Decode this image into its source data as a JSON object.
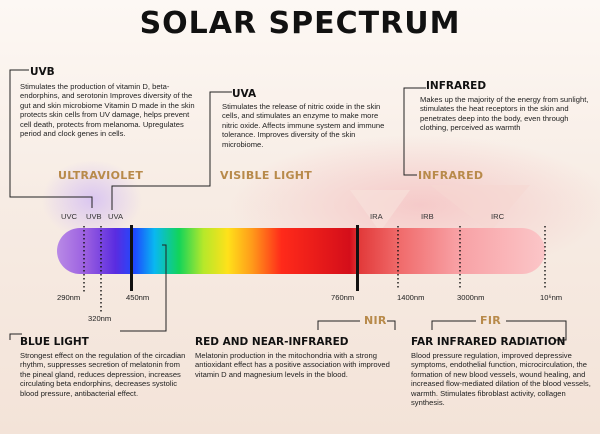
{
  "title": "SOLAR SPECTRUM",
  "uvb": {
    "heading": "UVB",
    "text": "Stimulates the production of vitamin D, beta-endorphins, and serotonin Improves diversity of the gut and skin microbiome Vitamin D made in the skin protects skin cells from UV damage, helps prevent cell death, protects from melanoma. Upregulates period and clock genes in cells."
  },
  "uva": {
    "heading": "UVA",
    "text": "Stimulates the release of nitric oxide in the skin cells, and stimulates an enzyme to make more nitric oxide. Affects immune system and immune tolerance. Improves diversity of the skin microbiome."
  },
  "infrared": {
    "heading": "INFRARED",
    "text": "Makes up the majority of the energy from sunlight, stimulates the heat receptors in the skin and penetrates deep into the body, even through clothing, perceived as warmth"
  },
  "bands": {
    "ultraviolet": "ULTRAVIOLET",
    "visible": "VISIBLE LIGHT",
    "infrared": "INFRARED"
  },
  "ticks": {
    "uvc": "UVC",
    "uvb": "UVB",
    "uva": "UVA",
    "ira": "IRA",
    "irb": "IRB",
    "irc": "IRC"
  },
  "wavelengths": {
    "w290": "290nm",
    "w320": "320nm",
    "w450": "450nm",
    "w760": "760nm",
    "w1400": "1400nm",
    "w3000": "3000nm",
    "w10": "10⁶nm"
  },
  "nir_label": "NIR",
  "fir_label": "FIR",
  "blue_light": {
    "heading": "BLUE LIGHT",
    "text": "Strongest effect on the regulation of the circadian rhythm, suppresses secretion of melatonin from the pineal gland, reduces depression, increases circulating beta endorphins, decreases systolic blood pressure, antibacterial effect."
  },
  "red_nir": {
    "heading": "RED AND NEAR-INFRARED",
    "text": "Melatonin production in the mitochondria with a strong antioxidant effect has a positive association with improved vitamin D and magnesium levels in the blood."
  },
  "far_ir": {
    "heading": "FAR INFRARED RADIATION",
    "text": "Blood pressure regulation, improved depressive symptoms, endothelial function, microcirculation, the formation of new blood vessels, wound healing, and increased flow-mediated dilation of the blood vessels, warmth. Stimulates fibroblast activity, collagen synthesis."
  },
  "colors": {
    "band_label": "#b88a4a",
    "line": "#222222"
  }
}
